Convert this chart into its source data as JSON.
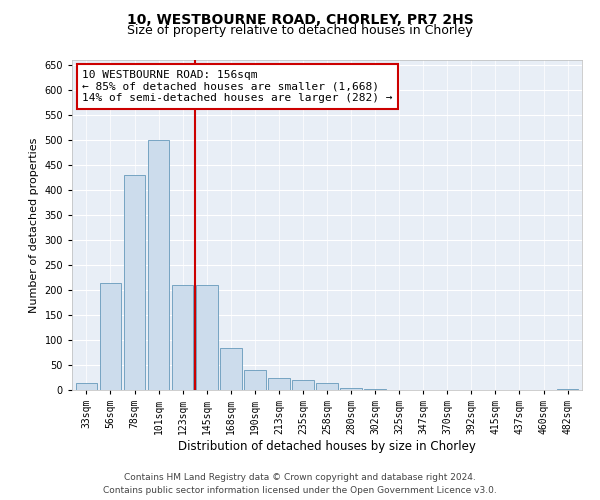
{
  "title": "10, WESTBOURNE ROAD, CHORLEY, PR7 2HS",
  "subtitle": "Size of property relative to detached houses in Chorley",
  "xlabel": "Distribution of detached houses by size in Chorley",
  "ylabel": "Number of detached properties",
  "footer_line1": "Contains HM Land Registry data © Crown copyright and database right 2024.",
  "footer_line2": "Contains public sector information licensed under the Open Government Licence v3.0.",
  "annotation_line1": "10 WESTBOURNE ROAD: 156sqm",
  "annotation_line2": "← 85% of detached houses are smaller (1,668)",
  "annotation_line3": "14% of semi-detached houses are larger (282) →",
  "bar_color": "#ccdcec",
  "bar_edge_color": "#6699bb",
  "vline_color": "#cc0000",
  "annotation_box_edge_color": "#cc0000",
  "bg_color": "#e8eef6",
  "categories": [
    "33sqm",
    "56sqm",
    "78sqm",
    "101sqm",
    "123sqm",
    "145sqm",
    "168sqm",
    "190sqm",
    "213sqm",
    "235sqm",
    "258sqm",
    "280sqm",
    "302sqm",
    "325sqm",
    "347sqm",
    "370sqm",
    "392sqm",
    "415sqm",
    "437sqm",
    "460sqm",
    "482sqm"
  ],
  "values": [
    15,
    215,
    430,
    500,
    210,
    210,
    85,
    40,
    25,
    20,
    15,
    5,
    2,
    1,
    0,
    0,
    0,
    0,
    0,
    0,
    3
  ],
  "ylim": [
    0,
    660
  ],
  "yticks": [
    0,
    50,
    100,
    150,
    200,
    250,
    300,
    350,
    400,
    450,
    500,
    550,
    600,
    650
  ],
  "vline_x": 4.5,
  "title_fontsize": 10,
  "subtitle_fontsize": 9,
  "xlabel_fontsize": 8.5,
  "ylabel_fontsize": 8,
  "tick_fontsize": 7,
  "annotation_fontsize": 8,
  "footer_fontsize": 6.5
}
